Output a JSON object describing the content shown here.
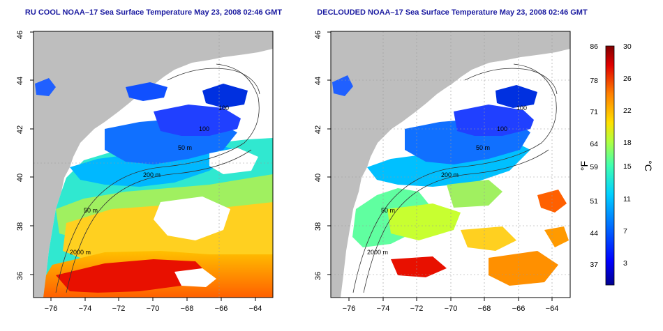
{
  "panels": [
    {
      "id": "left",
      "title": "RU COOL NOAA–17 Sea Surface Temperature May 23, 2008 02:46 GMT",
      "x_ticks": [
        "−76",
        "−74",
        "−72",
        "−70",
        "−68",
        "−66",
        "−64"
      ],
      "y_ticks": [
        "36",
        "38",
        "40",
        "42",
        "44",
        "46"
      ],
      "contour_labels": [
        "100",
        "100",
        "50 m",
        "200 m",
        "50 m",
        "2000 m"
      ]
    },
    {
      "id": "right",
      "title": "DECLOUDED NOAA–17 Sea Surface Temperature May 23, 2008 02:46 GMT",
      "x_ticks": [
        "−76",
        "−74",
        "−72",
        "−70",
        "−68",
        "−66",
        "−64"
      ],
      "y_ticks": [
        "36",
        "38",
        "40",
        "42",
        "44",
        "46"
      ],
      "contour_labels": [
        "100",
        "100",
        "50 m",
        "200 m",
        "50 m",
        "2000 m"
      ]
    }
  ],
  "colorbar": {
    "fahrenheit_unit": "°F",
    "celsius_unit": "°C",
    "fahrenheit_ticks": [
      "86",
      "78",
      "71",
      "64",
      "59",
      "51",
      "44",
      "37"
    ],
    "celsius_ticks": [
      "30",
      "26",
      "22",
      "18",
      "15",
      "11",
      "7",
      "3"
    ],
    "range_celsius": [
      0,
      30
    ],
    "colors": [
      "#00008f",
      "#0000ff",
      "#0060ff",
      "#00c0ff",
      "#40ffc0",
      "#c0ff40",
      "#ffd000",
      "#ff7000",
      "#e00000",
      "#800000"
    ]
  },
  "map": {
    "lon_range": [
      -77,
      -63
    ],
    "lat_range": [
      35,
      46
    ],
    "land_color": "#bebebe",
    "cloud_color": "#ffffff"
  }
}
